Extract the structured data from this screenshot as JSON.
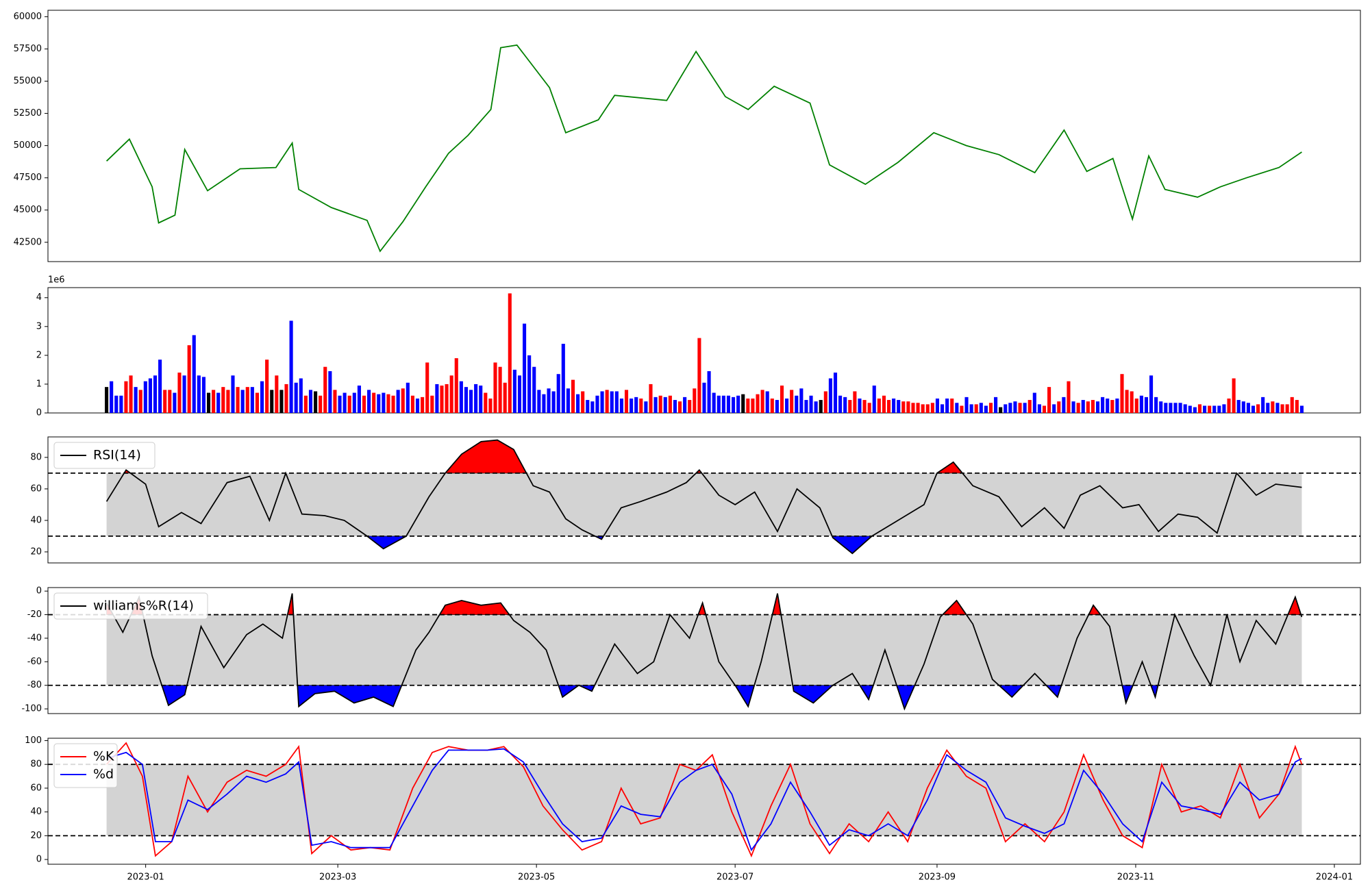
{
  "chart_data": [
    {
      "type": "line",
      "title": "",
      "ylim": [
        41000,
        60500
      ],
      "yticks": [
        42500,
        45000,
        47500,
        50000,
        52500,
        55000,
        57500,
        60000
      ],
      "color": "#008000",
      "x": [
        "2022-12-20",
        "2022-12-27",
        "2023-01-03",
        "2023-01-05",
        "2023-01-10",
        "2023-01-13",
        "2023-01-20",
        "2023-01-30",
        "2023-02-10",
        "2023-02-15",
        "2023-02-17",
        "2023-02-27",
        "2023-03-10",
        "2023-03-14",
        "2023-03-21",
        "2023-03-28",
        "2023-04-04",
        "2023-04-10",
        "2023-04-17",
        "2023-04-20",
        "2023-04-25",
        "2023-05-05",
        "2023-05-10",
        "2023-05-20",
        "2023-05-25",
        "2023-06-10",
        "2023-06-19",
        "2023-06-28",
        "2023-07-05",
        "2023-07-13",
        "2023-07-24",
        "2023-07-30",
        "2023-08-10",
        "2023-08-20",
        "2023-08-31",
        "2023-09-10",
        "2023-09-20",
        "2023-10-01",
        "2023-10-10",
        "2023-10-17",
        "2023-10-25",
        "2023-10-31",
        "2023-11-05",
        "2023-11-10",
        "2023-11-20",
        "2023-11-27",
        "2023-12-05",
        "2023-12-15",
        "2023-12-22"
      ],
      "values": [
        48800,
        50500,
        46800,
        44000,
        44600,
        49700,
        46500,
        48200,
        48300,
        50200,
        46600,
        45200,
        44200,
        41800,
        44100,
        46800,
        49400,
        50800,
        52800,
        57600,
        57800,
        54500,
        51000,
        52000,
        53900,
        53500,
        57300,
        53800,
        52800,
        54600,
        53300,
        48500,
        47000,
        48700,
        51000,
        50000,
        49300,
        47900,
        51200,
        48000,
        49000,
        44300,
        49200,
        46600,
        46000,
        46800,
        47500,
        48300,
        49500
      ]
    },
    {
      "type": "bar",
      "title": "",
      "exponent_label": "1e6",
      "ylim": [
        0,
        4.35
      ],
      "yticks": [
        0,
        1,
        2,
        3,
        4
      ],
      "colors": {
        "up": "#ff0000",
        "down": "#0000ff",
        "flat": "#000000"
      },
      "x_start": "2022-12-20",
      "x_end": "2023-12-22",
      "values": [
        0.9,
        1.1,
        0.6,
        0.6,
        1.1,
        1.3,
        0.9,
        0.8,
        1.1,
        1.2,
        1.3,
        1.85,
        0.8,
        0.8,
        0.7,
        1.4,
        1.3,
        2.35,
        2.7,
        1.3,
        1.25,
        0.7,
        0.8,
        0.7,
        0.9,
        0.8,
        1.3,
        0.9,
        0.8,
        0.9,
        0.9,
        0.7,
        1.1,
        1.85,
        0.8,
        1.3,
        0.8,
        1.0,
        3.2,
        1.05,
        1.2,
        0.6,
        0.8,
        0.75,
        0.6,
        1.6,
        1.45,
        0.8,
        0.6,
        0.7,
        0.6,
        0.7,
        0.95,
        0.6,
        0.8,
        0.7,
        0.65,
        0.7,
        0.65,
        0.6,
        0.8,
        0.85,
        1.05,
        0.6,
        0.5,
        0.55,
        1.75,
        0.6,
        1.0,
        0.95,
        1.0,
        1.3,
        1.9,
        1.1,
        0.9,
        0.8,
        1.0,
        0.95,
        0.7,
        0.5,
        1.75,
        1.6,
        1.05,
        4.15,
        1.5,
        1.3,
        3.1,
        2.0,
        1.6,
        0.8,
        0.65,
        0.85,
        0.75,
        1.35,
        2.4,
        0.85,
        1.15,
        0.65,
        0.75,
        0.45,
        0.4,
        0.6,
        0.75,
        0.8,
        0.75,
        0.75,
        0.5,
        0.8,
        0.5,
        0.55,
        0.5,
        0.4,
        1.0,
        0.55,
        0.6,
        0.55,
        0.6,
        0.45,
        0.4,
        0.55,
        0.45,
        0.85,
        2.6,
        1.05,
        1.45,
        0.7,
        0.6,
        0.6,
        0.6,
        0.55,
        0.6,
        0.65,
        0.5,
        0.5,
        0.65,
        0.8,
        0.75,
        0.5,
        0.45,
        0.95,
        0.5,
        0.8,
        0.6,
        0.85,
        0.45,
        0.6,
        0.4,
        0.45,
        0.75,
        1.2,
        1.4,
        0.6,
        0.55,
        0.45,
        0.75,
        0.5,
        0.45,
        0.35,
        0.95,
        0.5,
        0.6,
        0.45,
        0.5,
        0.45,
        0.4,
        0.4,
        0.35,
        0.35,
        0.3,
        0.3,
        0.35,
        0.5,
        0.3,
        0.5,
        0.5,
        0.35,
        0.25,
        0.55,
        0.3,
        0.3,
        0.35,
        0.25,
        0.35,
        0.55,
        0.2,
        0.3,
        0.35,
        0.4,
        0.35,
        0.35,
        0.45,
        0.7,
        0.3,
        0.25,
        0.9,
        0.3,
        0.4,
        0.55,
        1.1,
        0.4,
        0.35,
        0.45,
        0.4,
        0.45,
        0.4,
        0.55,
        0.5,
        0.45,
        0.5,
        1.35,
        0.8,
        0.75,
        0.5,
        0.6,
        0.55,
        1.3,
        0.55,
        0.4,
        0.35,
        0.35,
        0.35,
        0.35,
        0.3,
        0.25,
        0.2,
        0.3,
        0.25,
        0.25,
        0.25,
        0.25,
        0.3,
        0.5,
        1.2,
        0.45,
        0.4,
        0.35,
        0.25,
        0.3,
        0.55,
        0.35,
        0.4,
        0.35,
        0.3,
        0.3,
        0.55,
        0.45,
        0.25
      ],
      "kinds": [
        "k",
        "b",
        "b",
        "b",
        "r",
        "r",
        "b",
        "r",
        "b",
        "b",
        "b",
        "b",
        "r",
        "r",
        "b",
        "r",
        "b",
        "r",
        "b",
        "b",
        "b",
        "k",
        "r",
        "b",
        "r",
        "r",
        "b",
        "r",
        "b",
        "r",
        "b",
        "r",
        "b",
        "r",
        "k",
        "r",
        "k",
        "r",
        "b",
        "b",
        "b",
        "r",
        "b",
        "k",
        "r",
        "r",
        "b",
        "r",
        "b",
        "b",
        "r",
        "b",
        "b",
        "r",
        "b",
        "r",
        "b",
        "b",
        "r",
        "r",
        "b",
        "r",
        "b",
        "r",
        "b",
        "r",
        "r",
        "r",
        "b",
        "r",
        "r",
        "r",
        "r",
        "b",
        "b",
        "b",
        "b",
        "b",
        "r",
        "r",
        "r",
        "r",
        "r",
        "r",
        "b",
        "b",
        "b",
        "b",
        "b",
        "b",
        "b",
        "b",
        "b",
        "b",
        "b",
        "b",
        "r",
        "b",
        "r",
        "b",
        "b",
        "b",
        "b",
        "r",
        "b",
        "b",
        "b",
        "r",
        "b",
        "b",
        "r",
        "b",
        "r",
        "b",
        "r",
        "b",
        "r",
        "b",
        "r",
        "b",
        "r",
        "r",
        "r",
        "b",
        "b",
        "b",
        "b",
        "b",
        "b",
        "b",
        "b",
        "k",
        "r",
        "r",
        "r",
        "r",
        "b",
        "r",
        "b",
        "r",
        "b",
        "r",
        "b",
        "b",
        "b",
        "b",
        "b",
        "k",
        "r",
        "b",
        "b",
        "b",
        "b",
        "r",
        "r",
        "b",
        "r",
        "r",
        "b",
        "r",
        "r",
        "r",
        "b",
        "b",
        "r",
        "r",
        "r",
        "r",
        "r",
        "r",
        "r",
        "b",
        "b",
        "b",
        "r",
        "b",
        "r",
        "b",
        "b",
        "r",
        "b",
        "b",
        "r",
        "b",
        "k",
        "b",
        "b",
        "b",
        "r",
        "b",
        "r",
        "b",
        "b",
        "r",
        "r",
        "b",
        "r",
        "b",
        "r",
        "b",
        "r",
        "b",
        "r",
        "r",
        "b",
        "b",
        "b",
        "r",
        "b",
        "r",
        "r",
        "r",
        "r",
        "b",
        "b",
        "b",
        "b",
        "b",
        "b",
        "b",
        "b",
        "b",
        "b",
        "b",
        "b",
        "r",
        "b",
        "r",
        "b",
        "b",
        "b",
        "r",
        "r",
        "b",
        "b",
        "b",
        "b",
        "r",
        "b",
        "b",
        "r",
        "b",
        "r",
        "r",
        "r",
        "r",
        "b",
        "b",
        "r",
        "r",
        "b"
      ]
    },
    {
      "type": "line",
      "title": "",
      "legend": [
        {
          "name": "RSI(14)",
          "color": "#000000"
        }
      ],
      "ylim": [
        13,
        93
      ],
      "yticks": [
        20,
        40,
        60,
        80
      ],
      "upper": 70,
      "lower": 30,
      "x": [
        "2022-12-20",
        "2022-12-26",
        "2023-01-01",
        "2023-01-05",
        "2023-01-12",
        "2023-01-18",
        "2023-01-26",
        "2023-02-02",
        "2023-02-08",
        "2023-02-13",
        "2023-02-18",
        "2023-02-25",
        "2023-03-03",
        "2023-03-10",
        "2023-03-15",
        "2023-03-22",
        "2023-03-29",
        "2023-04-03",
        "2023-04-08",
        "2023-04-14",
        "2023-04-19",
        "2023-04-24",
        "2023-04-30",
        "2023-05-05",
        "2023-05-10",
        "2023-05-15",
        "2023-05-21",
        "2023-05-27",
        "2023-06-02",
        "2023-06-10",
        "2023-06-16",
        "2023-06-20",
        "2023-06-26",
        "2023-07-01",
        "2023-07-07",
        "2023-07-14",
        "2023-07-20",
        "2023-07-27",
        "2023-07-31",
        "2023-08-06",
        "2023-08-12",
        "2023-08-20",
        "2023-08-28",
        "2023-09-01",
        "2023-09-06",
        "2023-09-12",
        "2023-09-20",
        "2023-09-27",
        "2023-10-04",
        "2023-10-10",
        "2023-10-15",
        "2023-10-21",
        "2023-10-28",
        "2023-11-02",
        "2023-11-08",
        "2023-11-14",
        "2023-11-20",
        "2023-11-26",
        "2023-12-02",
        "2023-12-08",
        "2023-12-14",
        "2023-12-22"
      ],
      "values": [
        52,
        72,
        63,
        36,
        45,
        38,
        64,
        68,
        40,
        70,
        44,
        43,
        40,
        30,
        22,
        30,
        55,
        70,
        82,
        90,
        91,
        85,
        62,
        58,
        41,
        34,
        28,
        48,
        52,
        58,
        64,
        72,
        56,
        50,
        58,
        33,
        60,
        48,
        29,
        19,
        30,
        40,
        50,
        70,
        77,
        62,
        55,
        36,
        48,
        35,
        56,
        62,
        48,
        50,
        33,
        44,
        42,
        32,
        70,
        56,
        63,
        61
      ]
    },
    {
      "type": "line",
      "title": "",
      "legend": [
        {
          "name": "williams%R(14)",
          "color": "#000000"
        }
      ],
      "ylim": [
        -104,
        3
      ],
      "yticks": [
        0,
        -20,
        -40,
        -60,
        -80,
        -100
      ],
      "upper": -20,
      "lower": -80,
      "x": [
        "2022-12-20",
        "2022-12-25",
        "2022-12-30",
        "2023-01-03",
        "2023-01-08",
        "2023-01-13",
        "2023-01-18",
        "2023-01-25",
        "2023-02-01",
        "2023-02-06",
        "2023-02-12",
        "2023-02-15",
        "2023-02-17",
        "2023-02-22",
        "2023-02-28",
        "2023-03-06",
        "2023-03-12",
        "2023-03-18",
        "2023-03-25",
        "2023-03-29",
        "2023-04-03",
        "2023-04-08",
        "2023-04-14",
        "2023-04-20",
        "2023-04-24",
        "2023-04-29",
        "2023-05-04",
        "2023-05-09",
        "2023-05-14",
        "2023-05-18",
        "2023-05-25",
        "2023-06-01",
        "2023-06-06",
        "2023-06-11",
        "2023-06-17",
        "2023-06-21",
        "2023-06-26",
        "2023-07-01",
        "2023-07-05",
        "2023-07-09",
        "2023-07-14",
        "2023-07-19",
        "2023-07-25",
        "2023-07-31",
        "2023-08-06",
        "2023-08-11",
        "2023-08-16",
        "2023-08-22",
        "2023-08-28",
        "2023-09-02",
        "2023-09-07",
        "2023-09-12",
        "2023-09-18",
        "2023-09-24",
        "2023-10-01",
        "2023-10-08",
        "2023-10-14",
        "2023-10-19",
        "2023-10-24",
        "2023-10-29",
        "2023-11-03",
        "2023-11-07",
        "2023-11-13",
        "2023-11-19",
        "2023-11-24",
        "2023-11-29",
        "2023-12-03",
        "2023-12-08",
        "2023-12-14",
        "2023-12-20",
        "2023-12-22"
      ],
      "values": [
        -10,
        -35,
        -5,
        -55,
        -97,
        -88,
        -30,
        -65,
        -37,
        -28,
        -40,
        -2,
        -98,
        -87,
        -85,
        -95,
        -90,
        -98,
        -50,
        -35,
        -12,
        -8,
        -12,
        -10,
        -25,
        -35,
        -50,
        -90,
        -80,
        -85,
        -45,
        -70,
        -60,
        -20,
        -40,
        -10,
        -60,
        -80,
        -98,
        -60,
        -2,
        -85,
        -95,
        -80,
        -70,
        -92,
        -50,
        -100,
        -62,
        -22,
        -8,
        -28,
        -75,
        -90,
        -70,
        -90,
        -40,
        -12,
        -30,
        -95,
        -60,
        -90,
        -20,
        -55,
        -80,
        -20,
        -60,
        -25,
        -45,
        -5,
        -22
      ]
    },
    {
      "type": "line",
      "title": "",
      "legend": [
        {
          "name": "%K",
          "color": "#ff0000"
        },
        {
          "name": "%d",
          "color": "#0000ff"
        }
      ],
      "ylim": [
        -4,
        102
      ],
      "yticks": [
        0,
        20,
        40,
        60,
        80,
        100
      ],
      "upper": 80,
      "lower": 20,
      "x": [
        "2022-12-20",
        "2022-12-26",
        "2022-12-31",
        "2023-01-04",
        "2023-01-09",
        "2023-01-14",
        "2023-01-20",
        "2023-01-26",
        "2023-02-01",
        "2023-02-07",
        "2023-02-13",
        "2023-02-17",
        "2023-02-21",
        "2023-02-27",
        "2023-03-05",
        "2023-03-11",
        "2023-03-17",
        "2023-03-24",
        "2023-03-30",
        "2023-04-04",
        "2023-04-10",
        "2023-04-16",
        "2023-04-21",
        "2023-04-27",
        "2023-05-03",
        "2023-05-09",
        "2023-05-15",
        "2023-05-21",
        "2023-05-27",
        "2023-06-02",
        "2023-06-08",
        "2023-06-14",
        "2023-06-19",
        "2023-06-24",
        "2023-06-30",
        "2023-07-06",
        "2023-07-12",
        "2023-07-18",
        "2023-07-24",
        "2023-07-30",
        "2023-08-05",
        "2023-08-11",
        "2023-08-17",
        "2023-08-23",
        "2023-08-29",
        "2023-09-04",
        "2023-09-10",
        "2023-09-16",
        "2023-09-22",
        "2023-09-28",
        "2023-10-04",
        "2023-10-10",
        "2023-10-16",
        "2023-10-22",
        "2023-10-28",
        "2023-11-03",
        "2023-11-09",
        "2023-11-15",
        "2023-11-21",
        "2023-11-27",
        "2023-12-03",
        "2023-12-09",
        "2023-12-15",
        "2023-12-20",
        "2023-12-22"
      ],
      "k": [
        80,
        98,
        70,
        3,
        15,
        70,
        40,
        65,
        75,
        70,
        80,
        95,
        5,
        20,
        8,
        10,
        8,
        60,
        90,
        95,
        92,
        92,
        95,
        78,
        45,
        25,
        8,
        15,
        60,
        30,
        35,
        80,
        75,
        88,
        40,
        3,
        45,
        80,
        30,
        5,
        30,
        15,
        40,
        15,
        60,
        92,
        70,
        60,
        15,
        30,
        15,
        40,
        88,
        50,
        20,
        10,
        80,
        40,
        45,
        35,
        80,
        35,
        55,
        95,
        80
      ],
      "d": [
        85,
        90,
        80,
        15,
        15,
        50,
        42,
        55,
        70,
        65,
        72,
        82,
        12,
        15,
        10,
        10,
        10,
        45,
        75,
        92,
        92,
        92,
        93,
        82,
        55,
        30,
        15,
        18,
        45,
        38,
        36,
        65,
        75,
        80,
        55,
        8,
        30,
        65,
        40,
        12,
        25,
        20,
        30,
        20,
        50,
        88,
        75,
        65,
        35,
        28,
        22,
        30,
        75,
        55,
        30,
        15,
        65,
        45,
        42,
        38,
        65,
        50,
        55,
        82,
        85
      ]
    }
  ],
  "x_axis": {
    "ticks": [
      {
        "date": "2023-01-01",
        "label": "2023-01"
      },
      {
        "date": "2023-03-01",
        "label": "2023-03"
      },
      {
        "date": "2023-05-01",
        "label": "2023-05"
      },
      {
        "date": "2023-07-01",
        "label": "2023-07"
      },
      {
        "date": "2023-09-01",
        "label": "2023-09"
      },
      {
        "date": "2023-11-01",
        "label": "2023-11"
      },
      {
        "date": "2024-01-01",
        "label": "2024-01"
      }
    ],
    "range": [
      "2022-12-02",
      "2024-01-09"
    ]
  }
}
